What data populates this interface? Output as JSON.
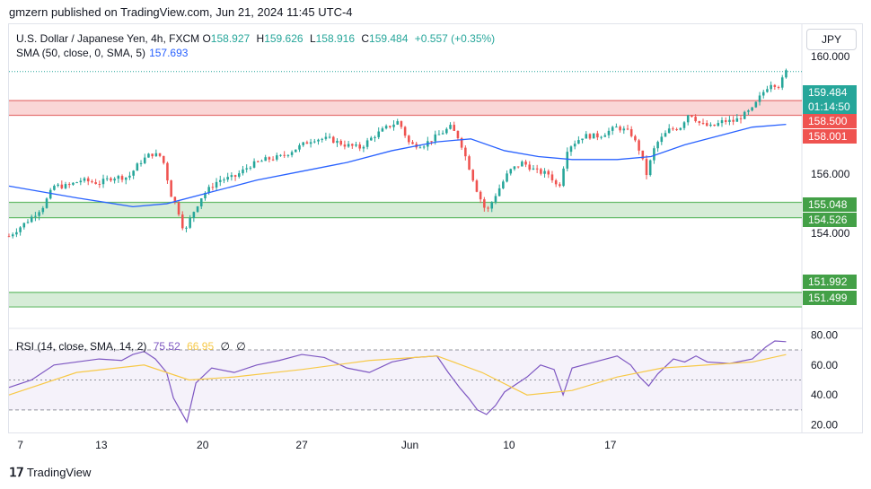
{
  "header": {
    "published": "gmzern published on TradingView.com, Jun 21, 2024 11:45 UTC-4"
  },
  "legend": {
    "symbol": "U.S. Dollar / Japanese Yen, 4h, FXCM",
    "o_label": "O",
    "o": "158.927",
    "h_label": "H",
    "h": "159.626",
    "l_label": "L",
    "l": "158.916",
    "c_label": "C",
    "c": "159.484",
    "chg": "+0.557 (+0.35%)",
    "sma_label": "SMA (50, close, 0, SMA, 5)",
    "sma_value": "157.693"
  },
  "currency_button": "JPY",
  "price_tags": {
    "last": "159.484",
    "countdown": "01:14:50",
    "res_top": "158.500",
    "res_bot": "158.001",
    "sup_top": "155.048",
    "sup_bot": "154.526",
    "low_top": "151.992",
    "low_bot": "151.499"
  },
  "rsi_legend": {
    "label": "RSI (14, close, SMA, 14, 2)",
    "rsi": "75.52",
    "sma": "66.95",
    "e1": "∅",
    "e2": "∅"
  },
  "footer": {
    "brand": "TradingView",
    "logo_icon": "tradingview-logo-icon"
  },
  "colors": {
    "up": "#26a69a",
    "down": "#ef5350",
    "sma": "#2962ff",
    "rsi": "#7e57c2",
    "rsi_sma": "#f7c948",
    "resistance": "#f8c8c8",
    "support": "#c8e6c9"
  },
  "chart_data": [
    {
      "type": "candlestick",
      "title": "U.S. Dollar / Japanese Yen, 4h, FXCM",
      "price_axis_ticks": [
        "160.000",
        "156.000",
        "154.000"
      ],
      "time_axis_ticks": [
        "7",
        "13",
        "20",
        "27",
        "Jun",
        "10",
        "17"
      ],
      "ylim": [
        150.8,
        161.0
      ],
      "zones": [
        {
          "name": "resistance",
          "from": 158.001,
          "to": 158.5
        },
        {
          "name": "support",
          "from": 154.526,
          "to": 155.048
        },
        {
          "name": "lower-support",
          "from": 151.499,
          "to": 151.992
        }
      ],
      "last_price": 159.484,
      "close_path": [
        {
          "d": 0.0,
          "c": 153.9
        },
        {
          "d": 0.8,
          "c": 154.4
        },
        {
          "d": 1.5,
          "c": 154.9
        },
        {
          "d": 2.0,
          "c": 155.6
        },
        {
          "d": 2.6,
          "c": 155.6
        },
        {
          "d": 3.2,
          "c": 155.8
        },
        {
          "d": 4.0,
          "c": 155.7
        },
        {
          "d": 4.6,
          "c": 155.9
        },
        {
          "d": 5.3,
          "c": 155.9
        },
        {
          "d": 5.8,
          "c": 156.4
        },
        {
          "d": 6.3,
          "c": 156.7
        },
        {
          "d": 6.8,
          "c": 156.6
        },
        {
          "d": 7.2,
          "c": 155.3
        },
        {
          "d": 7.5,
          "c": 154.8
        },
        {
          "d": 7.8,
          "c": 154.0
        },
        {
          "d": 8.1,
          "c": 154.6
        },
        {
          "d": 8.6,
          "c": 155.3
        },
        {
          "d": 9.3,
          "c": 155.8
        },
        {
          "d": 10.0,
          "c": 155.9
        },
        {
          "d": 10.7,
          "c": 156.3
        },
        {
          "d": 11.4,
          "c": 156.5
        },
        {
          "d": 12.1,
          "c": 156.6
        },
        {
          "d": 12.8,
          "c": 156.9
        },
        {
          "d": 13.5,
          "c": 157.2
        },
        {
          "d": 14.2,
          "c": 157.2
        },
        {
          "d": 14.9,
          "c": 157.0
        },
        {
          "d": 15.6,
          "c": 156.9
        },
        {
          "d": 16.2,
          "c": 157.3
        },
        {
          "d": 16.8,
          "c": 157.6
        },
        {
          "d": 17.3,
          "c": 157.8
        },
        {
          "d": 17.8,
          "c": 157.0
        },
        {
          "d": 18.4,
          "c": 157.0
        },
        {
          "d": 19.0,
          "c": 157.3
        },
        {
          "d": 19.6,
          "c": 157.6
        },
        {
          "d": 20.0,
          "c": 157.2
        },
        {
          "d": 20.4,
          "c": 156.3
        },
        {
          "d": 20.8,
          "c": 155.4
        },
        {
          "d": 21.2,
          "c": 154.7
        },
        {
          "d": 21.6,
          "c": 155.3
        },
        {
          "d": 22.2,
          "c": 156.1
        },
        {
          "d": 22.8,
          "c": 156.4
        },
        {
          "d": 23.4,
          "c": 156.1
        },
        {
          "d": 24.0,
          "c": 156.0
        },
        {
          "d": 24.4,
          "c": 155.5
        },
        {
          "d": 24.8,
          "c": 156.9
        },
        {
          "d": 25.5,
          "c": 157.3
        },
        {
          "d": 26.2,
          "c": 157.3
        },
        {
          "d": 27.0,
          "c": 157.6
        },
        {
          "d": 27.6,
          "c": 157.4
        },
        {
          "d": 28.0,
          "c": 156.8
        },
        {
          "d": 28.3,
          "c": 156.0
        },
        {
          "d": 28.7,
          "c": 157.0
        },
        {
          "d": 29.3,
          "c": 157.5
        },
        {
          "d": 29.8,
          "c": 157.6
        },
        {
          "d": 30.2,
          "c": 158.1
        },
        {
          "d": 30.7,
          "c": 157.7
        },
        {
          "d": 31.2,
          "c": 157.6
        },
        {
          "d": 31.7,
          "c": 157.8
        },
        {
          "d": 32.2,
          "c": 157.8
        },
        {
          "d": 32.6,
          "c": 158.0
        },
        {
          "d": 33.0,
          "c": 158.2
        },
        {
          "d": 33.4,
          "c": 158.7
        },
        {
          "d": 33.8,
          "c": 159.1
        },
        {
          "d": 34.2,
          "c": 159.0
        },
        {
          "d": 34.5,
          "c": 159.484
        }
      ],
      "sma_path": [
        {
          "d": 0.0,
          "v": 155.6
        },
        {
          "d": 3.0,
          "v": 155.2
        },
        {
          "d": 5.5,
          "v": 154.9
        },
        {
          "d": 7.0,
          "v": 155.0
        },
        {
          "d": 9.0,
          "v": 155.4
        },
        {
          "d": 11.0,
          "v": 155.8
        },
        {
          "d": 13.0,
          "v": 156.1
        },
        {
          "d": 15.0,
          "v": 156.4
        },
        {
          "d": 17.0,
          "v": 156.8
        },
        {
          "d": 19.0,
          "v": 157.1
        },
        {
          "d": 20.5,
          "v": 157.2
        },
        {
          "d": 22.0,
          "v": 156.8
        },
        {
          "d": 23.5,
          "v": 156.6
        },
        {
          "d": 25.0,
          "v": 156.5
        },
        {
          "d": 27.0,
          "v": 156.5
        },
        {
          "d": 28.5,
          "v": 156.6
        },
        {
          "d": 30.0,
          "v": 157.0
        },
        {
          "d": 31.5,
          "v": 157.3
        },
        {
          "d": 33.0,
          "v": 157.6
        },
        {
          "d": 34.5,
          "v": 157.693
        }
      ]
    },
    {
      "type": "line",
      "title": "RSI (14, close, SMA, 14, 2)",
      "ylim": [
        15,
        82
      ],
      "y_ticks": [
        "80.00",
        "60.00",
        "40.00",
        "20.00"
      ],
      "bands": [
        70,
        50,
        30
      ],
      "series": [
        {
          "name": "RSI",
          "x": [
            0,
            1,
            2,
            3,
            4,
            5,
            5.5,
            6,
            6.5,
            7,
            7.3,
            7.6,
            7.9,
            8.3,
            9,
            10,
            11,
            12,
            13,
            14,
            15,
            16,
            17,
            18,
            19,
            19.5,
            20,
            20.4,
            20.8,
            21.2,
            21.6,
            22,
            23,
            23.6,
            24.2,
            24.6,
            25,
            26,
            27,
            27.6,
            28,
            28.4,
            28.8,
            29.5,
            30,
            30.5,
            31,
            32,
            33,
            33.6,
            34,
            34.5
          ],
          "values": [
            45,
            50,
            60,
            62,
            64,
            63,
            67,
            69,
            64,
            55,
            38,
            30,
            22,
            48,
            58,
            55,
            60,
            63,
            67,
            65,
            58,
            55,
            62,
            65,
            66,
            55,
            45,
            38,
            30,
            27,
            33,
            42,
            52,
            60,
            57,
            40,
            58,
            62,
            66,
            60,
            52,
            46,
            54,
            64,
            62,
            66,
            62,
            61,
            64,
            72,
            76,
            75.52
          ]
        },
        {
          "name": "RSI-based MA",
          "x": [
            0,
            3,
            6,
            8,
            10,
            13,
            16,
            19,
            21,
            23,
            25,
            27,
            29,
            31,
            33,
            34.5
          ],
          "values": [
            40,
            55,
            60,
            50,
            52,
            57,
            63,
            66,
            55,
            40,
            43,
            52,
            58,
            60,
            62,
            66.95
          ]
        }
      ]
    }
  ]
}
